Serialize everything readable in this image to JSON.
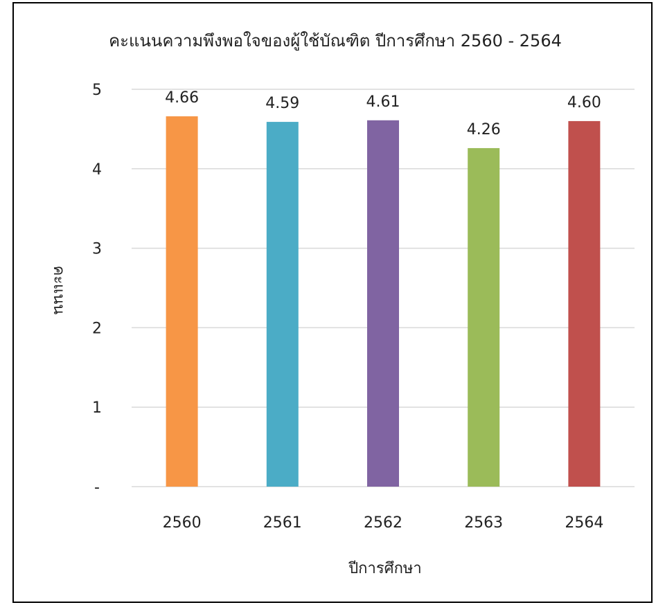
{
  "chart_data": {
    "type": "bar",
    "title": "คะแนนความพึงพอใจของผู้ใช้บัณฑิต ปีการศึกษา 2560 - 2564",
    "xlabel": "ปีการศึกษา",
    "ylabel": "คะแนน",
    "categories": [
      "2560",
      "2561",
      "2562",
      "2563",
      "2564"
    ],
    "values": [
      4.66,
      4.59,
      4.61,
      4.26,
      4.6
    ],
    "value_labels": [
      "4.66",
      "4.59",
      "4.61",
      "4.26",
      "4.60"
    ],
    "colors": [
      "#F79646",
      "#4BACC6",
      "#8064A2",
      "#9BBB59",
      "#C0504D"
    ],
    "ylim": [
      0,
      5
    ],
    "yticks": [
      0,
      1,
      2,
      3,
      4,
      5
    ],
    "ytick_labels": [
      "-",
      "1",
      "2",
      "3",
      "4",
      "5"
    ],
    "grid": true,
    "legend": "none"
  }
}
